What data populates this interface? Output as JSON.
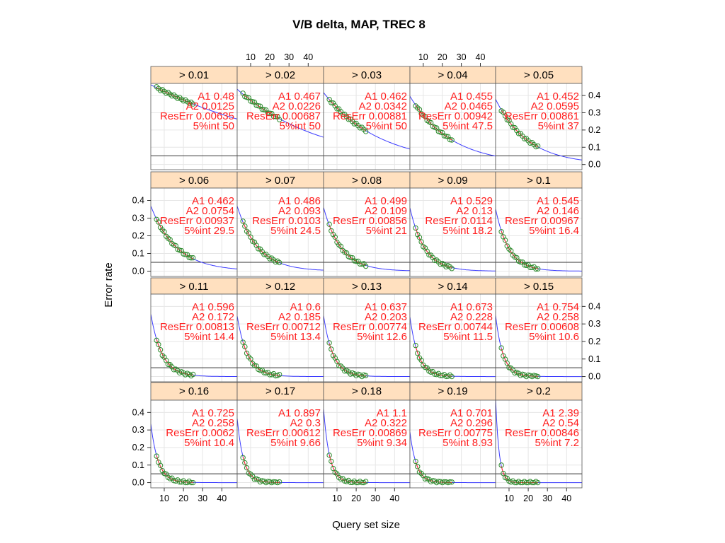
{
  "chart_data": {
    "type": "scatter",
    "title": "V/B delta, MAP, TREC 8",
    "xlabel": "Query set size",
    "ylabel": "Error rate",
    "xlim": [
      3,
      48
    ],
    "ylim": [
      -0.03,
      0.47
    ],
    "x_ticks": [
      10,
      20,
      30,
      40
    ],
    "y_ticks": [
      0.0,
      0.1,
      0.2,
      0.3,
      0.4
    ],
    "y_tick_labels": [
      "0.0",
      "0.1",
      "0.2",
      "0.3",
      "0.4"
    ],
    "reference_line_y": 0.05,
    "colors": {
      "points": "#2e8b2e",
      "fit": "#ff3030",
      "model": "#3c3cff",
      "strip": "#ffe0bf",
      "annotation": "#ff2020"
    },
    "panels": [
      {
        "label": "> 0.01",
        "a1": "0.48",
        "a2": "0.0125",
        "reserr": "0.00635",
        "int5": "50",
        "a1v": 0.48,
        "a2v": 0.0125
      },
      {
        "label": "> 0.02",
        "a1": "0.467",
        "a2": "0.0226",
        "reserr": "0.00687",
        "int5": "50",
        "a1v": 0.467,
        "a2v": 0.0226
      },
      {
        "label": "> 0.03",
        "a1": "0.462",
        "a2": "0.0342",
        "reserr": "0.00881",
        "int5": "50",
        "a1v": 0.462,
        "a2v": 0.0342
      },
      {
        "label": "> 0.04",
        "a1": "0.455",
        "a2": "0.0465",
        "reserr": "0.00942",
        "int5": "47.5",
        "a1v": 0.455,
        "a2v": 0.0465
      },
      {
        "label": "> 0.05",
        "a1": "0.452",
        "a2": "0.0595",
        "reserr": "0.00861",
        "int5": "37",
        "a1v": 0.452,
        "a2v": 0.0595
      },
      {
        "label": "> 0.06",
        "a1": "0.462",
        "a2": "0.0754",
        "reserr": "0.00937",
        "int5": "29.5",
        "a1v": 0.462,
        "a2v": 0.0754
      },
      {
        "label": "> 0.07",
        "a1": "0.486",
        "a2": "0.093",
        "reserr": "0.0103",
        "int5": "24.5",
        "a1v": 0.486,
        "a2v": 0.093
      },
      {
        "label": "> 0.08",
        "a1": "0.499",
        "a2": "0.109",
        "reserr": "0.00856",
        "int5": "21",
        "a1v": 0.499,
        "a2v": 0.109
      },
      {
        "label": "> 0.09",
        "a1": "0.529",
        "a2": "0.13",
        "reserr": "0.0114",
        "int5": "18.2",
        "a1v": 0.529,
        "a2v": 0.13
      },
      {
        "label": "> 0.1",
        "a1": "0.545",
        "a2": "0.146",
        "reserr": "0.00967",
        "int5": "16.4",
        "a1v": 0.545,
        "a2v": 0.146
      },
      {
        "label": "> 0.11",
        "a1": "0.596",
        "a2": "0.172",
        "reserr": "0.00813",
        "int5": "14.4",
        "a1v": 0.596,
        "a2v": 0.172
      },
      {
        "label": "> 0.12",
        "a1": "0.6",
        "a2": "0.185",
        "reserr": "0.00712",
        "int5": "13.4",
        "a1v": 0.6,
        "a2v": 0.185
      },
      {
        "label": "> 0.13",
        "a1": "0.637",
        "a2": "0.203",
        "reserr": "0.00774",
        "int5": "12.6",
        "a1v": 0.637,
        "a2v": 0.203
      },
      {
        "label": "> 0.14",
        "a1": "0.673",
        "a2": "0.228",
        "reserr": "0.00744",
        "int5": "11.5",
        "a1v": 0.673,
        "a2v": 0.228
      },
      {
        "label": "> 0.15",
        "a1": "0.754",
        "a2": "0.258",
        "reserr": "0.00608",
        "int5": "10.6",
        "a1v": 0.754,
        "a2v": 0.258
      },
      {
        "label": "> 0.16",
        "a1": "0.725",
        "a2": "0.258",
        "reserr": "0.0062",
        "int5": "10.4",
        "a1v": 0.725,
        "a2v": 0.258
      },
      {
        "label": "> 0.17",
        "a1": "0.897",
        "a2": "0.3",
        "reserr": "0.00612",
        "int5": "9.66",
        "a1v": 0.897,
        "a2v": 0.3
      },
      {
        "label": "> 0.18",
        "a1": "1.1",
        "a2": "0.322",
        "reserr": "0.00869",
        "int5": "9.34",
        "a1v": 1.1,
        "a2v": 0.322
      },
      {
        "label": "> 0.19",
        "a1": "0.701",
        "a2": "0.296",
        "reserr": "0.00775",
        "int5": "8.93",
        "a1v": 0.701,
        "a2v": 0.296
      },
      {
        "label": "> 0.2",
        "a1": "2.39",
        "a2": "0.54",
        "reserr": "0.00846",
        "int5": "7.2",
        "a1v": 2.39,
        "a2v": 0.54
      }
    ]
  }
}
